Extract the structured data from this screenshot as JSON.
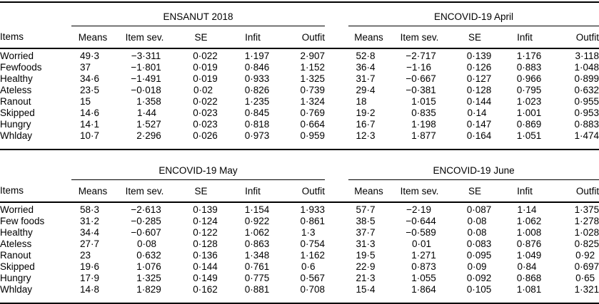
{
  "meta": {
    "background_color": "#ffffff",
    "text_color": "#000000",
    "rule_color": "#000000",
    "decimal_separator": "·"
  },
  "items_header": "Items",
  "columns": [
    "Means",
    "Item sev.",
    "SE",
    "Infit",
    "Outfit"
  ],
  "tables": [
    {
      "panels": [
        {
          "title": "ENSANUT 2018"
        },
        {
          "title": "ENCOVID-19 April"
        }
      ],
      "rows": [
        {
          "item": "Worried",
          "left": [
            "49·3",
            "−3·311",
            "0·022",
            "1·197",
            "2·907"
          ],
          "right": [
            "52·8",
            "−2·717",
            "0·139",
            "1·176",
            "3·118"
          ]
        },
        {
          "item": "Fewfoods",
          "left": [
            "37",
            "−1·801",
            "0·019",
            "0·846",
            "1·152"
          ],
          "right": [
            "36·4",
            "−1·16",
            "0·126",
            "0·883",
            "1·048"
          ]
        },
        {
          "item": "Healthy",
          "left": [
            "34·6",
            "−1·491",
            "0·019",
            "0·933",
            "1·325"
          ],
          "right": [
            "31·7",
            "−0·667",
            "0·127",
            "0·966",
            "0·899"
          ]
        },
        {
          "item": "Ateless",
          "left": [
            "23·5",
            "−0·018",
            "0·02",
            "0·826",
            "0·739"
          ],
          "right": [
            "29·4",
            "−0·381",
            "0·128",
            "0·795",
            "0·632"
          ]
        },
        {
          "item": "Ranout",
          "left": [
            "15",
            "1·358",
            "0·022",
            "1·235",
            "1·324"
          ],
          "right": [
            "18",
            "1·015",
            "0·144",
            "1·023",
            "0·955"
          ]
        },
        {
          "item": "Skipped",
          "left": [
            "14·6",
            "1·44",
            "0·023",
            "0·845",
            "0·769"
          ],
          "right": [
            "19·2",
            "0·835",
            "0·14",
            "1·001",
            "0·953"
          ]
        },
        {
          "item": "Hungry",
          "left": [
            "14·1",
            "1·527",
            "0·023",
            "0·818",
            "0·664"
          ],
          "right": [
            "16·7",
            "1·198",
            "0·147",
            "0·869",
            "0·883"
          ]
        },
        {
          "item": "Whlday",
          "left": [
            "10·7",
            "2·296",
            "0·026",
            "0·973",
            "0·959"
          ],
          "right": [
            "12·3",
            "1·877",
            "0·164",
            "1·051",
            "1·474"
          ]
        }
      ]
    },
    {
      "panels": [
        {
          "title": "ENCOVID-19 May"
        },
        {
          "title": "ENCOVID-19 June"
        }
      ],
      "rows": [
        {
          "item": "Worried",
          "left": [
            "58·3",
            "−2·613",
            "0·139",
            "1·154",
            "1·933"
          ],
          "right": [
            "57·7",
            "−2·19",
            "0·087",
            "1·14",
            "1·375"
          ]
        },
        {
          "item": "Few foods",
          "left": [
            "31·2",
            "−0·285",
            "0·124",
            "0·922",
            "0·861"
          ],
          "right": [
            "38·5",
            "−0·644",
            "0·08",
            "1·062",
            "1·278"
          ]
        },
        {
          "item": "Healthy",
          "left": [
            "34·4",
            "−0·607",
            "0·122",
            "1·062",
            "1·3"
          ],
          "right": [
            "37·7",
            "−0·589",
            "0·08",
            "1·008",
            "1·028"
          ]
        },
        {
          "item": "Ateless",
          "left": [
            "27·7",
            "0·08",
            "0·128",
            "0·863",
            "0·754"
          ],
          "right": [
            "31·3",
            "0·01",
            "0·083",
            "0·876",
            "0·825"
          ]
        },
        {
          "item": "Ranout",
          "left": [
            "23",
            "0·632",
            "0·136",
            "1·348",
            "1·162"
          ],
          "right": [
            "19·5",
            "1·271",
            "0·095",
            "1·049",
            "0·92"
          ]
        },
        {
          "item": "Skipped",
          "left": [
            "19·6",
            "1·076",
            "0·144",
            "0·761",
            "0·6"
          ],
          "right": [
            "22·9",
            "0·873",
            "0·09",
            "0·84",
            "0·697"
          ]
        },
        {
          "item": "Hungry",
          "left": [
            "17·9",
            "1·325",
            "0·149",
            "0·775",
            "0·567"
          ],
          "right": [
            "21·3",
            "1·055",
            "0·092",
            "0·868",
            "0·65"
          ]
        },
        {
          "item": "Whlday",
          "left": [
            "14·8",
            "1·829",
            "0·162",
            "0·881",
            "0·708"
          ],
          "right": [
            "15·4",
            "1·864",
            "0·105",
            "1·081",
            "1·321"
          ]
        }
      ]
    }
  ]
}
